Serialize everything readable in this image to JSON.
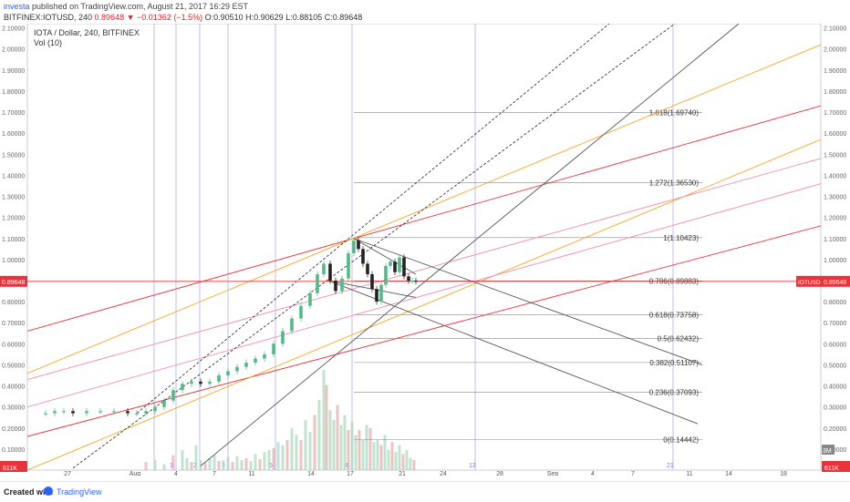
{
  "header": {
    "author": "investa",
    "published": "published on TradingView.com, August 21, 2017 16:29 EST",
    "symbol": "BITFINEX:IOTUSD, 240",
    "last": "0.89648",
    "change": "−0.01362 (−1.5%)",
    "ohlc": "O:0.90510 H:0.90629 L:0.88105 C:0.89648"
  },
  "legend": {
    "title": "IOTA / Dollar, 240, BITFINEX",
    "indicator": "Vol (10)"
  },
  "footer": {
    "created_with": "Created with",
    "brand": "TradingView"
  },
  "colors": {
    "bull": "#53b987",
    "bear": "#222222",
    "red": "#e8333a",
    "orange": "#f5a623",
    "pink": "#f28bb0",
    "gray": "#555555",
    "cycle": "#7b7be0"
  },
  "chart_data": {
    "type": "candlestick",
    "symbol": "IOTUSD",
    "y_ticks": [
      "0.10000",
      "0.20000",
      "0.30000",
      "0.40000",
      "0.50000",
      "0.60000",
      "0.70000",
      "0.80000",
      "0.90000",
      "1.00000",
      "1.10000",
      "1.20000",
      "1.30000",
      "1.40000",
      "1.50000",
      "1.60000",
      "1.70000",
      "1.80000",
      "1.90000",
      "2.00000",
      "2.10000"
    ],
    "ylim": [
      0.0,
      2.12
    ],
    "x_ticks": [
      "27",
      "Aug",
      "4",
      "7",
      "11",
      "14",
      "17",
      "21",
      "24",
      "28",
      "Sep",
      "4",
      "7",
      "11",
      "14",
      "18"
    ],
    "x_tick_pos": [
      74,
      148,
      193,
      235,
      276,
      341,
      384,
      441,
      486,
      548,
      606,
      650,
      694,
      756,
      799,
      859
    ],
    "price_label": "0.89648",
    "price_tag": "IOTUSD",
    "price_value": 0.89648,
    "volume_label": "611K",
    "volume_scale_label": "3M",
    "price_path": [
      [
        36,
        0.27
      ],
      [
        50,
        0.27
      ],
      [
        60,
        0.28
      ],
      [
        70,
        0.28
      ],
      [
        80,
        0.27
      ],
      [
        95,
        0.28
      ],
      [
        110,
        0.28
      ],
      [
        125,
        0.28
      ],
      [
        140,
        0.27
      ],
      [
        150,
        0.27
      ],
      [
        160,
        0.28
      ],
      [
        170,
        0.3
      ],
      [
        180,
        0.33
      ],
      [
        190,
        0.38
      ],
      [
        200,
        0.41
      ],
      [
        210,
        0.42
      ],
      [
        220,
        0.41
      ],
      [
        230,
        0.42
      ],
      [
        240,
        0.45
      ],
      [
        250,
        0.47
      ],
      [
        260,
        0.49
      ],
      [
        270,
        0.51
      ],
      [
        280,
        0.53
      ],
      [
        290,
        0.55
      ],
      [
        300,
        0.6
      ],
      [
        310,
        0.66
      ],
      [
        320,
        0.72
      ],
      [
        330,
        0.78
      ],
      [
        340,
        0.84
      ],
      [
        348,
        0.93
      ],
      [
        355,
        0.98
      ],
      [
        362,
        0.9
      ],
      [
        368,
        0.85
      ],
      [
        375,
        0.91
      ],
      [
        382,
        1.03
      ],
      [
        388,
        1.09
      ],
      [
        393,
        1.05
      ],
      [
        398,
        0.98
      ],
      [
        403,
        0.93
      ],
      [
        408,
        0.86
      ],
      [
        413,
        0.8
      ],
      [
        418,
        0.88
      ],
      [
        423,
        0.97
      ],
      [
        428,
        0.99
      ],
      [
        433,
        0.94
      ],
      [
        438,
        1.01
      ],
      [
        443,
        0.92
      ],
      [
        448,
        0.9
      ],
      [
        452,
        0.9
      ],
      [
        456,
        0.89648
      ]
    ],
    "fib_levels": [
      {
        "ratio": "1.618",
        "value": 1.6974,
        "label": "1.618(1.69740)"
      },
      {
        "ratio": "1.272",
        "value": 1.3653,
        "label": "1.272(1.36530)"
      },
      {
        "ratio": "1",
        "value": 1.10423,
        "label": "1(1.10423)"
      },
      {
        "ratio": "0.786",
        "value": 0.89883,
        "label": "0.786(0.89883)"
      },
      {
        "ratio": "0.618",
        "value": 0.73758,
        "label": "0.618(0.73758)"
      },
      {
        "ratio": "0.5",
        "value": 0.62432,
        "label": "0.5(0.62432)"
      },
      {
        "ratio": "0.382",
        "value": 0.51107,
        "label": "0.382(0.51107)"
      },
      {
        "ratio": "0.236",
        "value": 0.37093,
        "label": "0.236(0.37093)"
      },
      {
        "ratio": "0",
        "value": 0.14442,
        "label": "0(0.14442)"
      }
    ],
    "cycle_lines": [
      {
        "x": 169,
        "label": ""
      },
      {
        "x": 193,
        "label": "1"
      },
      {
        "x": 219,
        "label": "2"
      },
      {
        "x": 250,
        "label": "3"
      },
      {
        "x": 302,
        "label": "5"
      },
      {
        "x": 386,
        "label": "8"
      },
      {
        "x": 521,
        "label": "13"
      },
      {
        "x": 738,
        "label": "21"
      }
    ],
    "trend_lines": [
      {
        "color": "red",
        "from": [
          30,
          0.66
        ],
        "to": [
          900,
          1.73
        ]
      },
      {
        "color": "red",
        "from": [
          30,
          0.16
        ],
        "to": [
          900,
          1.16
        ]
      },
      {
        "color": "orange",
        "from": [
          30,
          0.46
        ],
        "to": [
          900,
          2.02
        ]
      },
      {
        "color": "orange",
        "from": [
          30,
          0.0
        ],
        "to": [
          900,
          1.57
        ]
      },
      {
        "color": "pink",
        "from": [
          30,
          0.43
        ],
        "to": [
          900,
          1.48
        ]
      },
      {
        "color": "pink",
        "from": [
          30,
          0.3
        ],
        "to": [
          900,
          1.36
        ]
      },
      {
        "color": "gray",
        "from": [
          220,
          0.02
        ],
        "to": [
          810,
          2.12
        ]
      },
      {
        "color": "gray",
        "from": [
          388,
          1.1
        ],
        "to": [
          770,
          0.5
        ]
      },
      {
        "color": "gray",
        "from": [
          360,
          0.9
        ],
        "to": [
          765,
          0.22
        ]
      },
      {
        "color": "gray",
        "from": [
          360,
          0.9
        ],
        "to": [
          456,
          0.82
        ]
      },
      {
        "color": "gray",
        "from": [
          388,
          1.1
        ],
        "to": [
          456,
          0.93
        ]
      }
    ],
    "channel_lines": [
      {
        "from": [
          150,
          0.27
        ],
        "to": [
          668,
          2.12
        ]
      },
      {
        "from": [
          80,
          0.01
        ],
        "to": [
          740,
          2.12
        ]
      }
    ],
    "volume": [
      [
        160,
        0.08
      ],
      [
        170,
        0.1
      ],
      [
        180,
        0.06
      ],
      [
        190,
        0.15
      ],
      [
        200,
        0.2
      ],
      [
        205,
        0.12
      ],
      [
        210,
        0.08
      ],
      [
        215,
        0.25
      ],
      [
        220,
        0.1
      ],
      [
        225,
        0.07
      ],
      [
        230,
        0.12
      ],
      [
        235,
        0.15
      ],
      [
        240,
        0.09
      ],
      [
        245,
        0.1
      ],
      [
        250,
        0.13
      ],
      [
        255,
        0.08
      ],
      [
        260,
        0.14
      ],
      [
        265,
        0.1
      ],
      [
        270,
        0.12
      ],
      [
        275,
        0.09
      ],
      [
        280,
        0.16
      ],
      [
        285,
        0.11
      ],
      [
        290,
        0.18
      ],
      [
        295,
        0.2
      ],
      [
        300,
        0.22
      ],
      [
        305,
        0.28
      ],
      [
        310,
        0.25
      ],
      [
        315,
        0.3
      ],
      [
        320,
        0.42
      ],
      [
        325,
        0.35
      ],
      [
        330,
        0.3
      ],
      [
        335,
        0.5
      ],
      [
        340,
        0.38
      ],
      [
        345,
        0.55
      ],
      [
        350,
        0.7
      ],
      [
        355,
        1.0
      ],
      [
        358,
        0.85
      ],
      [
        362,
        0.6
      ],
      [
        366,
        0.5
      ],
      [
        370,
        0.65
      ],
      [
        374,
        0.45
      ],
      [
        378,
        0.55
      ],
      [
        382,
        0.4
      ],
      [
        386,
        0.48
      ],
      [
        390,
        0.35
      ],
      [
        394,
        0.4
      ],
      [
        398,
        0.3
      ],
      [
        402,
        0.45
      ],
      [
        406,
        0.42
      ],
      [
        410,
        0.28
      ],
      [
        414,
        0.3
      ],
      [
        418,
        0.25
      ],
      [
        422,
        0.35
      ],
      [
        426,
        0.2
      ],
      [
        430,
        0.28
      ],
      [
        434,
        0.18
      ],
      [
        438,
        0.25
      ],
      [
        442,
        0.16
      ],
      [
        446,
        0.2
      ],
      [
        450,
        0.12
      ],
      [
        454,
        0.1
      ]
    ]
  }
}
